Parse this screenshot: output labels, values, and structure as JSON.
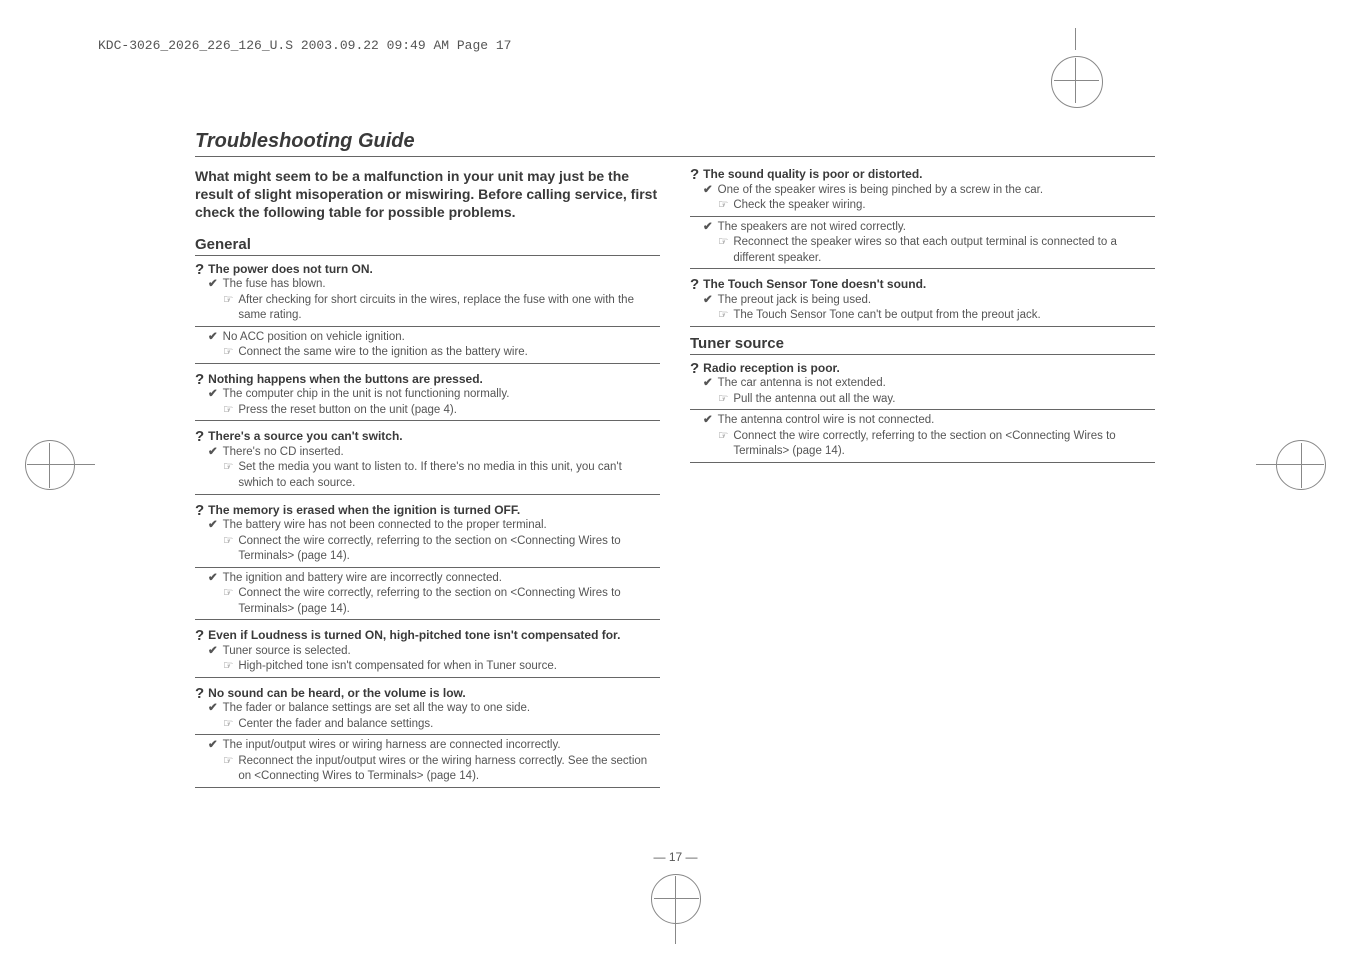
{
  "header": "KDC-3026_2026_226_126_U.S  2003.09.22  09:49 AM  Page 17",
  "title": "Troubleshooting Guide",
  "intro": "What might seem to be a malfunction in your unit may just be the result of slight misoperation or miswiring. Before calling service, first check the following table for possible problems.",
  "page_num": "— 17 —",
  "left": {
    "section1": "General",
    "q1": {
      "q": "The power does not turn ON.",
      "c1": "The fuse has blown.",
      "r1": "After checking for short circuits in the wires, replace the fuse with one with the same rating.",
      "c2": "No ACC position on vehicle ignition.",
      "r2": "Connect the same wire to the ignition as the battery wire."
    },
    "q2": {
      "q": "Nothing happens when the buttons are pressed.",
      "c1": "The computer chip in the unit is not functioning normally.",
      "r1": "Press the reset button on the unit (page 4)."
    },
    "q3": {
      "q": "There's a source you can't switch.",
      "c1": "There's no CD inserted.",
      "r1": "Set the media you want to listen to. If there's no media in this unit, you can't swhich to each source."
    },
    "q4": {
      "q": "The memory is erased when the ignition is turned OFF.",
      "c1": "The battery wire has not been connected to the proper terminal.",
      "r1": "Connect the wire correctly, referring to the section on <Connecting Wires to Terminals> (page 14).",
      "c2": "The ignition and battery wire are incorrectly connected.",
      "r2": "Connect the wire correctly, referring to the section on <Connecting Wires to Terminals> (page 14)."
    },
    "q5": {
      "q": "Even if Loudness is turned ON, high-pitched tone isn't compensated for.",
      "c1": "Tuner source is selected.",
      "r1": "High-pitched tone isn't compensated for when in Tuner source."
    },
    "q6": {
      "q": "No sound can be heard, or the volume is low.",
      "c1": "The fader or balance settings are set all the way to one side.",
      "r1": "Center the fader and balance settings.",
      "c2": "The input/output wires or wiring harness are connected incorrectly.",
      "r2": "Reconnect the input/output wires or the wiring harness correctly. See the section on <Connecting Wires to Terminals> (page 14)."
    }
  },
  "right": {
    "q7": {
      "q": "The sound quality is poor or distorted.",
      "c1": "One of the speaker wires is being pinched by a screw in the car.",
      "r1": "Check the speaker wiring.",
      "c2": "The speakers are not wired correctly.",
      "r2": "Reconnect the speaker wires so that each output terminal is connected to a different speaker."
    },
    "q8": {
      "q": "The Touch Sensor Tone doesn't sound.",
      "c1": "The preout jack is being used.",
      "r1": "The Touch Sensor Tone can't be output from the preout jack."
    },
    "section2": "Tuner source",
    "q9": {
      "q": "Radio reception is poor.",
      "c1": "The car antenna is not extended.",
      "r1": "Pull the antenna out all the way.",
      "c2": "The antenna control wire is not connected.",
      "r2": "Connect the wire correctly, referring to the section on <Connecting Wires to Terminals> (page 14)."
    }
  }
}
